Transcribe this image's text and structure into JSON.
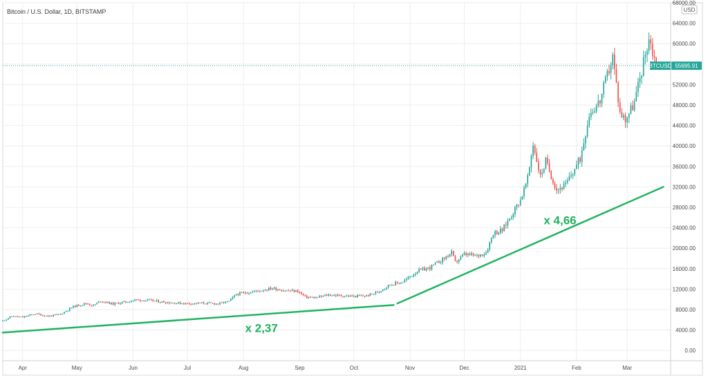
{
  "chart_data": {
    "type": "candlestick",
    "title": "Bitcoin / U.S. Dollar, 1D, BITSTAMP",
    "symbol_label": "BTCUSD",
    "last_price": 55695.91,
    "last_price_label": "55695.91",
    "currency_label": "USD",
    "ylim": [
      -2000,
      68000
    ],
    "y_ticks": [
      0,
      4000,
      8000,
      12000,
      16000,
      20000,
      24000,
      28000,
      32000,
      36000,
      40000,
      44000,
      48000,
      52000,
      56000,
      60000,
      64000,
      68000
    ],
    "y_tick_labels": [
      "0.00",
      "4000.00",
      "8000.00",
      "12000.00",
      "16000.00",
      "20000.00",
      "24000.00",
      "28000.00",
      "32000.00",
      "36000.00",
      "40000.00",
      "44000.00",
      "48000.00",
      "52000.00",
      "56000.00",
      "60000.00",
      "64000.00",
      "68000.00"
    ],
    "x_start": "2020-03-21",
    "x_end": "2021-03-25",
    "x_ticks": [
      {
        "date": "2020-04-01",
        "label": "Apr"
      },
      {
        "date": "2020-05-01",
        "label": "May"
      },
      {
        "date": "2020-06-01",
        "label": "Jun"
      },
      {
        "date": "2020-07-01",
        "label": "Jul"
      },
      {
        "date": "2020-08-01",
        "label": "Aug"
      },
      {
        "date": "2020-09-01",
        "label": "Sep"
      },
      {
        "date": "2020-10-01",
        "label": "Oct"
      },
      {
        "date": "2020-11-01",
        "label": "Nov"
      },
      {
        "date": "2020-12-01",
        "label": "Dec"
      },
      {
        "date": "2021-01-01",
        "label": "2021"
      },
      {
        "date": "2021-02-01",
        "label": "Feb"
      },
      {
        "date": "2021-03-01",
        "label": "Mar"
      }
    ],
    "series": [
      {
        "name": "BTCUSD",
        "points": [
          {
            "date": "2020-03-21",
            "close": 5800
          },
          {
            "date": "2020-03-26",
            "close": 6700
          },
          {
            "date": "2020-04-01",
            "close": 6500
          },
          {
            "date": "2020-04-08",
            "close": 7200
          },
          {
            "date": "2020-04-15",
            "close": 6700
          },
          {
            "date": "2020-04-22",
            "close": 7100
          },
          {
            "date": "2020-04-29",
            "close": 8600
          },
          {
            "date": "2020-05-06",
            "close": 9200
          },
          {
            "date": "2020-05-10",
            "close": 8800
          },
          {
            "date": "2020-05-14",
            "close": 9700
          },
          {
            "date": "2020-05-21",
            "close": 9100
          },
          {
            "date": "2020-05-28",
            "close": 9500
          },
          {
            "date": "2020-06-02",
            "close": 9900
          },
          {
            "date": "2020-06-10",
            "close": 9800
          },
          {
            "date": "2020-06-17",
            "close": 9500
          },
          {
            "date": "2020-06-24",
            "close": 9300
          },
          {
            "date": "2020-07-01",
            "close": 9200
          },
          {
            "date": "2020-07-10",
            "close": 9250
          },
          {
            "date": "2020-07-18",
            "close": 9150
          },
          {
            "date": "2020-07-24",
            "close": 9600
          },
          {
            "date": "2020-07-28",
            "close": 11000
          },
          {
            "date": "2020-08-02",
            "close": 11300
          },
          {
            "date": "2020-08-10",
            "close": 11700
          },
          {
            "date": "2020-08-17",
            "close": 12200
          },
          {
            "date": "2020-08-24",
            "close": 11700
          },
          {
            "date": "2020-08-31",
            "close": 11600
          },
          {
            "date": "2020-09-04",
            "close": 10500
          },
          {
            "date": "2020-09-10",
            "close": 10300
          },
          {
            "date": "2020-09-17",
            "close": 10900
          },
          {
            "date": "2020-09-24",
            "close": 10700
          },
          {
            "date": "2020-10-01",
            "close": 10600
          },
          {
            "date": "2020-10-08",
            "close": 10700
          },
          {
            "date": "2020-10-14",
            "close": 11400
          },
          {
            "date": "2020-10-21",
            "close": 12900
          },
          {
            "date": "2020-10-28",
            "close": 13400
          },
          {
            "date": "2020-11-05",
            "close": 15500
          },
          {
            "date": "2020-11-12",
            "close": 16200
          },
          {
            "date": "2020-11-19",
            "close": 17800
          },
          {
            "date": "2020-11-24",
            "close": 19100
          },
          {
            "date": "2020-11-26",
            "close": 17200
          },
          {
            "date": "2020-12-01",
            "close": 18800
          },
          {
            "date": "2020-12-08",
            "close": 18500
          },
          {
            "date": "2020-12-13",
            "close": 19200
          },
          {
            "date": "2020-12-17",
            "close": 23000
          },
          {
            "date": "2020-12-22",
            "close": 23500
          },
          {
            "date": "2020-12-27",
            "close": 26500
          },
          {
            "date": "2021-01-01",
            "close": 29500
          },
          {
            "date": "2021-01-05",
            "close": 33500
          },
          {
            "date": "2021-01-08",
            "close": 40500
          },
          {
            "date": "2021-01-12",
            "close": 34000
          },
          {
            "date": "2021-01-15",
            "close": 37000
          },
          {
            "date": "2021-01-21",
            "close": 31500
          },
          {
            "date": "2021-01-26",
            "close": 32300
          },
          {
            "date": "2021-01-29",
            "close": 34300
          },
          {
            "date": "2021-02-03",
            "close": 37500
          },
          {
            "date": "2021-02-08",
            "close": 46300
          },
          {
            "date": "2021-02-14",
            "close": 48800
          },
          {
            "date": "2021-02-21",
            "close": 57500
          },
          {
            "date": "2021-02-25",
            "close": 46500
          },
          {
            "date": "2021-02-28",
            "close": 45200
          },
          {
            "date": "2021-03-05",
            "close": 48500
          },
          {
            "date": "2021-03-09",
            "close": 54800
          },
          {
            "date": "2021-03-13",
            "close": 61200
          },
          {
            "date": "2021-03-17",
            "close": 55695.91
          }
        ]
      }
    ],
    "trend_lines": [
      {
        "x1": "2020-03-21",
        "y1": 3500,
        "x2": "2020-10-23",
        "y2": 8900,
        "label": "x 2,37"
      },
      {
        "x1": "2020-10-25",
        "y1": 9200,
        "x2": "2021-03-21",
        "y2": 32000,
        "label": "x 4,66"
      }
    ],
    "colors": {
      "up": "#26a69a",
      "down": "#ef5350",
      "trend": "#1fb25f",
      "price_tag": "#26a69a",
      "grid": "#eeeeee"
    },
    "grid": true
  }
}
